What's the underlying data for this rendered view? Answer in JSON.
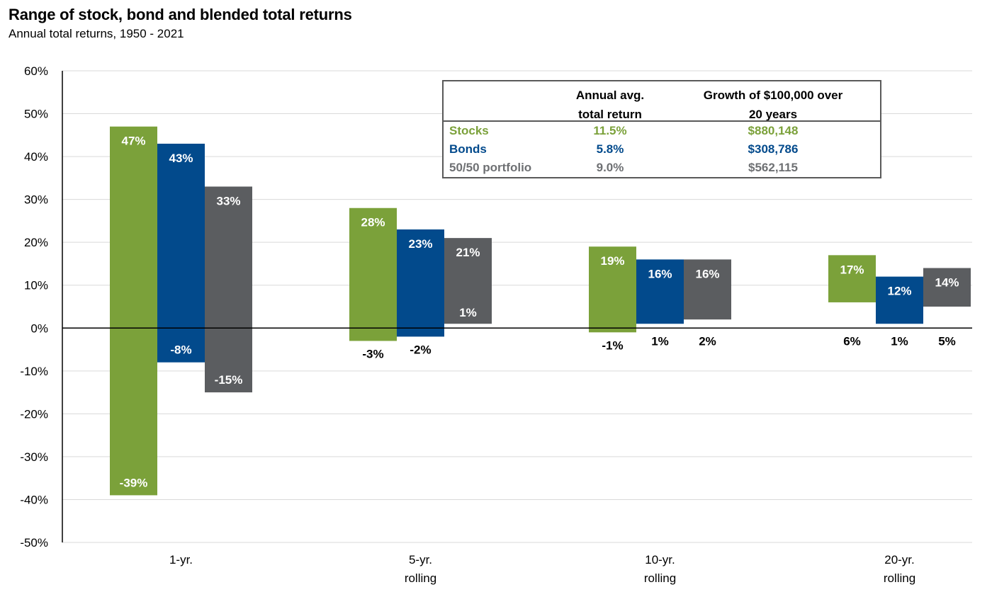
{
  "colors": {
    "stocks": "#7BA13A",
    "bonds": "#024A8C",
    "blended": "#5B5D60",
    "axis": "#000000",
    "grid": "#D9D9D9"
  },
  "chart_data": {
    "type": "bar",
    "title": "Range of stock, bond and blended total returns",
    "subtitle": "Annual total returns, 1950 - 2021",
    "ylim": [
      -50,
      60
    ],
    "yticks": [
      60,
      50,
      40,
      30,
      20,
      10,
      0,
      -10,
      -20,
      -30,
      -40,
      -50
    ],
    "ytick_labels": [
      "60%",
      "50%",
      "40%",
      "30%",
      "20%",
      "10%",
      "0%",
      "-10%",
      "-20%",
      "-30%",
      "-40%",
      "-50%"
    ],
    "grid": true,
    "categories": [
      {
        "line1": "1-yr.",
        "line2": ""
      },
      {
        "line1": "5-yr.",
        "line2": "rolling"
      },
      {
        "line1": "10-yr.",
        "line2": "rolling"
      },
      {
        "line1": "20-yr.",
        "line2": "rolling"
      }
    ],
    "series": [
      {
        "key": "stocks",
        "max": [
          47,
          28,
          19,
          17
        ],
        "min": [
          -39,
          -3,
          -1,
          6
        ],
        "max_labels": [
          "47%",
          "28%",
          "19%",
          "17%"
        ],
        "min_labels": [
          "-39%",
          "-3%",
          "-1%",
          "6%"
        ]
      },
      {
        "key": "bonds",
        "max": [
          43,
          23,
          16,
          12
        ],
        "min": [
          -8,
          -2,
          1,
          1
        ],
        "max_labels": [
          "43%",
          "23%",
          "16%",
          "12%"
        ],
        "min_labels": [
          "-8%",
          "-2%",
          "1%",
          "1%"
        ]
      },
      {
        "key": "blended",
        "max": [
          33,
          21,
          16,
          14
        ],
        "min": [
          -15,
          1,
          2,
          5
        ],
        "max_labels": [
          "33%",
          "21%",
          "16%",
          "14%"
        ],
        "min_labels": [
          "-15%",
          "1%",
          "2%",
          "5%"
        ]
      }
    ]
  },
  "summary_table": {
    "col1_header": [
      "Annual avg.",
      "total return"
    ],
    "col2_header": [
      "Growth of $100,000 over",
      "20 years"
    ],
    "rows": [
      {
        "name": "Stocks",
        "avg": "11.5%",
        "growth": "$880,148",
        "color": "#7BA13A"
      },
      {
        "name": "Bonds",
        "avg": "5.8%",
        "growth": "$308,786",
        "color": "#024A8C"
      },
      {
        "name": "50/50 portfolio",
        "avg": "9.0%",
        "growth": "$562,115",
        "color": "#6E7073"
      }
    ]
  }
}
